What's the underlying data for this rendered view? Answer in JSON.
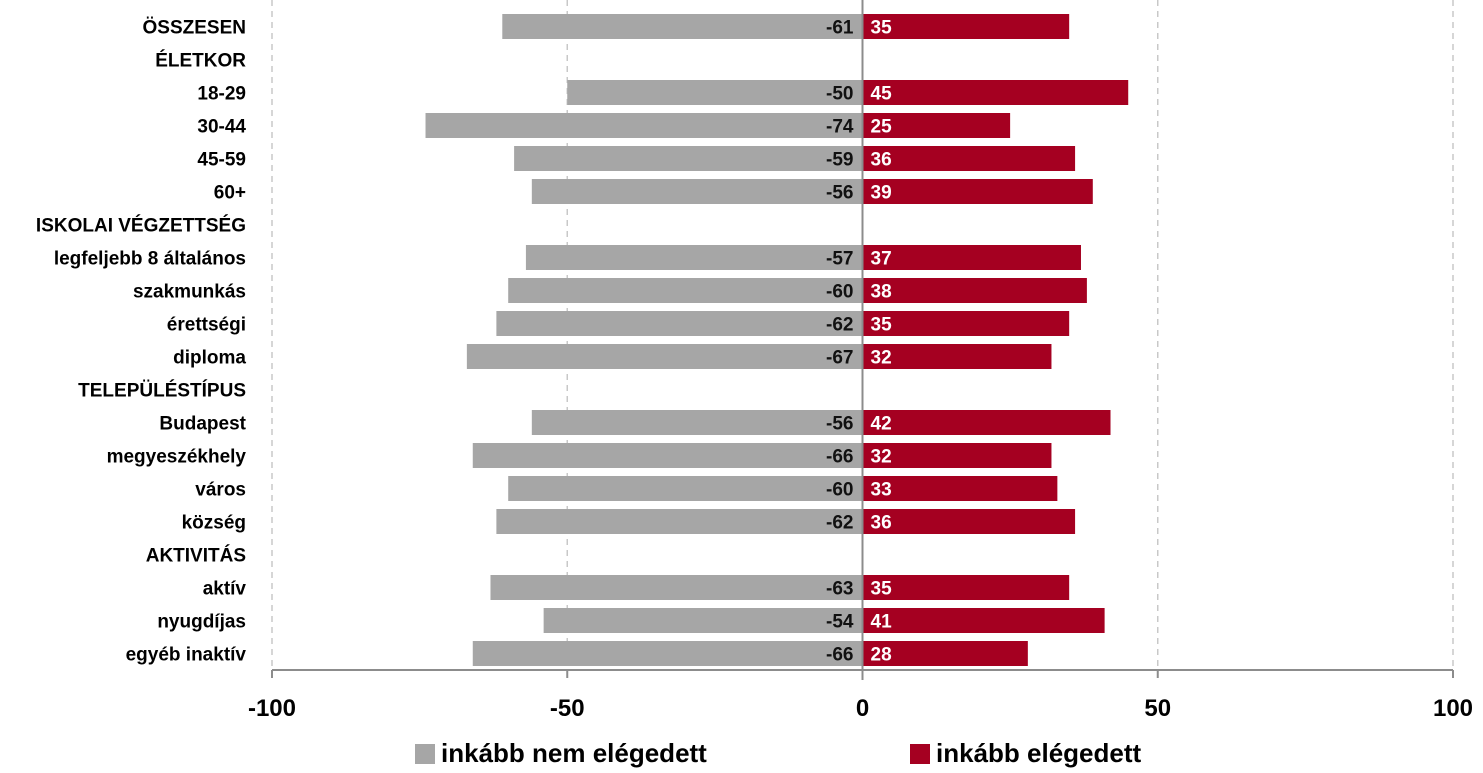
{
  "chart_data": {
    "type": "bar",
    "orientation": "horizontal",
    "stacked": "diverging",
    "categories": [
      "ÖSSZESEN",
      "ÉLETKOR",
      "18-29",
      "30-44",
      "45-59",
      "60+",
      "ISKOLAI VÉGZETTSÉG",
      "legfeljebb 8 általános",
      "szakmunkás",
      "érettségi",
      "diploma",
      "TELEPÜLÉSTÍPUS",
      "Budapest",
      "megyeszékhely",
      "város",
      "község",
      "AKTIVITÁS",
      "aktív",
      "nyugdíjas",
      "egyéb inaktív"
    ],
    "series": [
      {
        "name": "inkább nem elégedett",
        "color": "#a6a6a6",
        "values": [
          -61,
          null,
          -50,
          -74,
          -59,
          -56,
          null,
          -57,
          -60,
          -62,
          -67,
          null,
          -56,
          -66,
          -60,
          -62,
          null,
          -63,
          -54,
          -66
        ]
      },
      {
        "name": "inkább elégedett",
        "color": "#a50021",
        "values": [
          35,
          null,
          45,
          25,
          36,
          39,
          null,
          37,
          38,
          35,
          32,
          null,
          42,
          32,
          33,
          36,
          null,
          35,
          41,
          28
        ]
      }
    ],
    "xlim": [
      -100,
      100
    ],
    "xticks": [
      "-100",
      "-50",
      "0",
      "50",
      "100"
    ],
    "grid": "vertical dashed",
    "legend_position": "bottom"
  }
}
